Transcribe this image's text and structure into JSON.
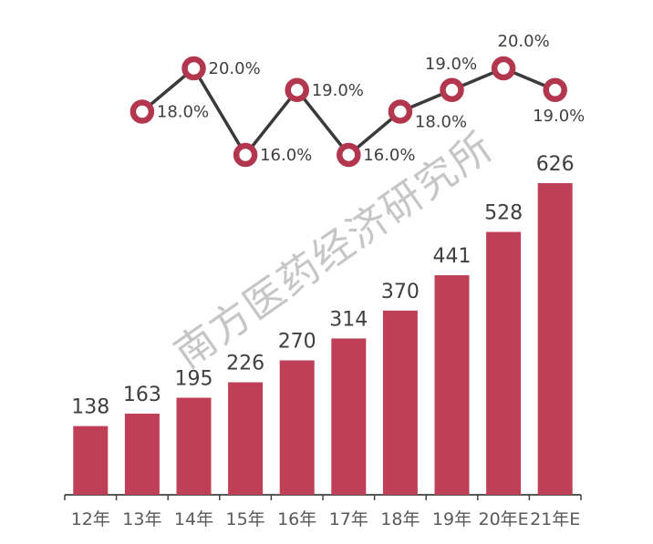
{
  "watermark": "南方医药经济研究所",
  "colors": {
    "background": "#ffffff",
    "bar": "#bf4056",
    "marker_stroke": "#b2374e",
    "marker_fill": "#ffffff",
    "line": "#3a3a3a",
    "value_label": "#3f3f3f",
    "pct_label": "#3f3f3f",
    "axis_label": "#595959",
    "axis": "#404040",
    "watermark": "#c6c6c6"
  },
  "chart_data": {
    "type": "bar",
    "title": "",
    "subtitle": "",
    "categories": [
      "12年",
      "13年",
      "14年",
      "15年",
      "16年",
      "17年",
      "18年",
      "19年",
      "20年E",
      "21年E"
    ],
    "series": [
      {
        "name": "annual-value-bars",
        "type": "bar",
        "values": [
          138,
          163,
          195,
          226,
          270,
          314,
          370,
          441,
          528,
          626
        ],
        "data_labels": [
          "138",
          "163",
          "195",
          "226",
          "270",
          "314",
          "370",
          "441",
          "528",
          "626"
        ]
      },
      {
        "name": "growth-rate-line",
        "type": "line",
        "categories": [
          "13年",
          "14年",
          "15年",
          "16年",
          "17年",
          "18年",
          "19年",
          "20年E",
          "21年E"
        ],
        "values": [
          18.0,
          20.0,
          16.0,
          19.0,
          16.0,
          18.0,
          19.0,
          20.0,
          19.0
        ],
        "data_labels": [
          "18.0%",
          "20.0%",
          "16.0%",
          "19.0%",
          "16.0%",
          "18.0%",
          "19.0%",
          "20.0%",
          "19.0%"
        ],
        "label_placement": [
          "right",
          "right",
          "right",
          "right",
          "right",
          "right-low",
          "above",
          "above-right",
          "below"
        ]
      }
    ],
    "xlabel": "",
    "ylabel": "",
    "y_axis_visible": false,
    "grid": false,
    "legend": "none",
    "line_value_range_pct": [
      16,
      20
    ]
  }
}
